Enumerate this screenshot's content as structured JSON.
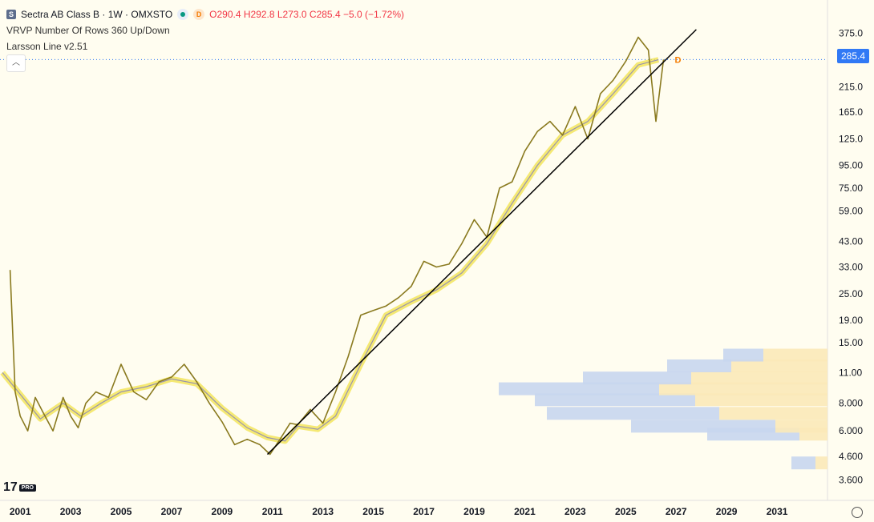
{
  "legend": {
    "symbol_icon": "S",
    "title": "Sectra AB Class B · 1W · OMXSTO",
    "status_icon": "live-dot-icon",
    "d_badge": "D",
    "ohlc": "O290.4  H292.8  L273.0  C285.4  −5.0 (−1.72%)",
    "indicator1": "VRVP Number Of Rows 360 Up/Down",
    "indicator2": "Larsson Line v2.51"
  },
  "price_tag": "285.4",
  "logo": {
    "text": "17",
    "badge": "PRO"
  },
  "colors": {
    "background": "#fffdf0",
    "price_line": "#3179f5",
    "larsson_yellow": "#f2e24a",
    "larsson_blue": "#5b5bd6",
    "candles": "#8a7a1f",
    "trendline": "#000000"
  },
  "chart_data": {
    "type": "line",
    "title": "Sectra AB Class B · 1W · OMXSTO",
    "y_scale": "log",
    "ylim": [
      3.3,
      420
    ],
    "xlim": [
      2000.2,
      2033.0
    ],
    "y_ticks": [
      "375.0",
      "285.4",
      "215.0",
      "165.0",
      "125.0",
      "95.00",
      "75.00",
      "59.00",
      "43.00",
      "33.00",
      "25.00",
      "19.00",
      "15.00",
      "11.00",
      "8.000",
      "6.000",
      "4.600",
      "3.600"
    ],
    "y_tick_values": [
      375,
      285.4,
      215,
      165,
      125,
      95,
      75,
      59,
      43,
      33,
      25,
      19,
      15,
      11,
      8,
      6,
      4.6,
      3.6
    ],
    "x_ticks": [
      "2001",
      "2003",
      "2005",
      "2007",
      "2009",
      "2011",
      "2013",
      "2015",
      "2017",
      "2019",
      "2021",
      "2023",
      "2025",
      "2027",
      "2029",
      "2031"
    ],
    "x_tick_values": [
      2001,
      2003,
      2005,
      2007,
      2009,
      2011,
      2013,
      2015,
      2017,
      2019,
      2021,
      2023,
      2025,
      2027,
      2029,
      2031
    ],
    "last_price": 285.4,
    "series": [
      {
        "name": "",
        "x": [
          2000.6,
          2000.8,
          2001.0,
          2001.3,
          2001.6,
          2001.9,
          2002.3,
          2002.7,
          2003.0,
          2003.3,
          2003.6,
          2004.0,
          2004.5,
          2005.0,
          2005.5,
          2006.0,
          2006.5,
          2007.0,
          2007.5,
          2008.0,
          2008.5,
          2009.0,
          2009.5,
          2010.0,
          2010.5,
          2010.9,
          2011.3,
          2011.7,
          2012.0,
          2012.5,
          2013.0,
          2013.5,
          2014.0,
          2014.5,
          2015.0,
          2015.5,
          2016.0,
          2016.5,
          2017.0,
          2017.5,
          2018.0,
          2018.5,
          2019.0,
          2019.5,
          2020.0,
          2020.5,
          2021.0,
          2021.5,
          2022.0,
          2022.5,
          2023.0,
          2023.5,
          2024.0,
          2024.5,
          2025.0,
          2025.5,
          2025.9,
          2026.2,
          2026.5
        ],
        "values": [
          32,
          9,
          7,
          6,
          8.5,
          7.3,
          6,
          8.5,
          7,
          6.2,
          8,
          9,
          8.5,
          12,
          9,
          8.3,
          10,
          10.5,
          12,
          10,
          8,
          6.6,
          5.2,
          5.5,
          5.2,
          4.7,
          5.5,
          6.5,
          6.4,
          7.5,
          6.5,
          9,
          13,
          20,
          21,
          22,
          24,
          27,
          35,
          33,
          34,
          42,
          54,
          45,
          75,
          80,
          110,
          135,
          150,
          130,
          175,
          125,
          200,
          230,
          280,
          360,
          315,
          150,
          285.4
        ]
      },
      {
        "name": "",
        "x": [
          2000.3,
          2001.8,
          2002.7,
          2003.4,
          2004.2,
          2005.0,
          2006.0,
          2007.0,
          2008.0,
          2009.0,
          2010.0,
          2010.8,
          2011.5,
          2012.0,
          2012.8,
          2013.5,
          2014.5,
          2015.5,
          2016.5,
          2017.5,
          2018.5,
          2019.5,
          2020.5,
          2021.5,
          2022.5,
          2023.5,
          2024.5,
          2025.5,
          2026.3
        ],
        "values": [
          11,
          6.8,
          8.0,
          7.0,
          8.0,
          9.0,
          9.5,
          10.3,
          9.8,
          7.6,
          6.2,
          5.6,
          5.4,
          6.3,
          6.1,
          7.0,
          12,
          20,
          23,
          26,
          31,
          42,
          64,
          95,
          130,
          150,
          200,
          270,
          285
        ]
      },
      {
        "name": "",
        "x": [
          2010.8,
          2027.8
        ],
        "values": [
          4.7,
          390
        ]
      }
    ],
    "volume_profile": {
      "price": [
        4.3,
        5.8,
        6.3,
        7.2,
        8.3,
        9.3,
        10.4,
        11.8,
        13.2
      ],
      "up": [
        15,
        35,
        65,
        135,
        165,
        210,
        170,
        120,
        80
      ],
      "down": [
        30,
        115,
        180,
        215,
        200,
        200,
        135,
        80,
        50
      ]
    }
  }
}
